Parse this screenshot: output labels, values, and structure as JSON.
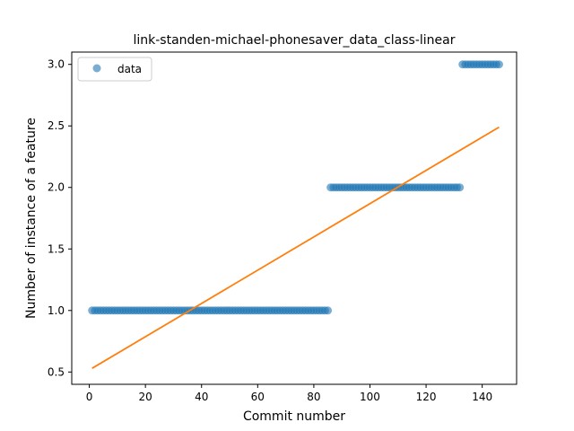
{
  "chart_data": {
    "type": "scatter",
    "title": "link-standen-michael-phonesaver_data_class-linear",
    "xlabel": "Commit number",
    "ylabel": "Number of instance of a feature",
    "xlim": [
      -6.25,
      152.25
    ],
    "ylim": [
      0.4,
      3.1
    ],
    "x_ticks": [
      0,
      20,
      40,
      60,
      80,
      100,
      120,
      140
    ],
    "y_ticks": [
      0.5,
      1.0,
      1.5,
      2.0,
      2.5,
      3.0
    ],
    "x_tick_labels": [
      "0",
      "20",
      "40",
      "60",
      "80",
      "100",
      "120",
      "140"
    ],
    "y_tick_labels": [
      "0.5",
      "1.0",
      "1.5",
      "2.0",
      "2.5",
      "3.0"
    ],
    "grid": false,
    "legend_placement": "top-left",
    "series": [
      {
        "name": "data",
        "kind": "points",
        "color": "#1f77b4",
        "segments": [
          {
            "x_start": 1,
            "x_end": 85,
            "y": 1.0
          },
          {
            "x_start": 86,
            "x_end": 132,
            "y": 2.0
          },
          {
            "x_start": 133,
            "x_end": 146,
            "y": 3.0
          }
        ]
      },
      {
        "kind": "line",
        "color": "#ff7f0e",
        "x": [
          1,
          146
        ],
        "y": [
          0.53,
          2.49
        ]
      }
    ]
  }
}
